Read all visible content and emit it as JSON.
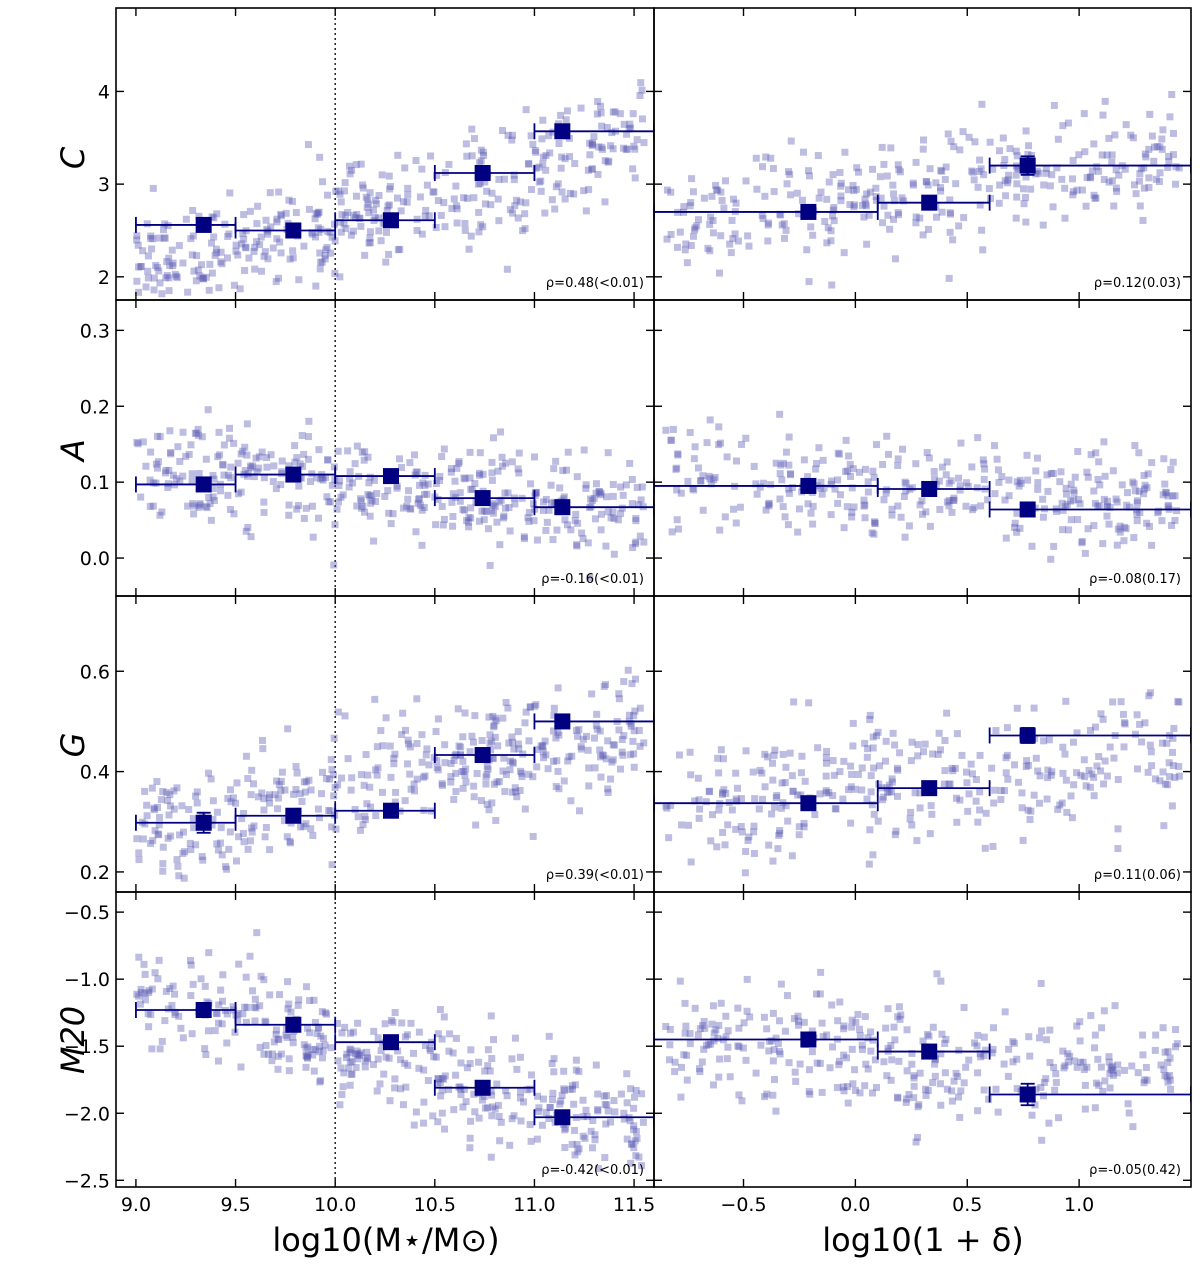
{
  "figure": {
    "x_titles": {
      "left": "log10(M⋆/M⊙)",
      "right": "log10(1 + δ)"
    },
    "row_titles": [
      "C",
      "A",
      "G",
      "M20"
    ]
  },
  "chart_data": {
    "type": "scatter",
    "columns": [
      {
        "key": "mass",
        "xlabel": "log10(M⋆/M⊙)",
        "xlim": [
          8.9,
          11.6
        ],
        "xticks": [
          9.0,
          9.5,
          10.0,
          10.5,
          11.0,
          11.5
        ],
        "xtick_labels": [
          "9.0",
          "9.5",
          "10.0",
          "10.5",
          "11.0",
          "11.5"
        ],
        "vline": 10.0,
        "vline_style": "dotted"
      },
      {
        "key": "density",
        "xlabel": "log10(1 + δ)",
        "xlim": [
          -0.9,
          1.5
        ],
        "xticks": [
          -0.5,
          0.0,
          0.5,
          1.0
        ],
        "xtick_labels": [
          "−0.5",
          "0.0",
          "0.5",
          "1.0"
        ]
      }
    ],
    "rows": [
      {
        "ylabel": "C",
        "ylim": [
          1.75,
          4.9
        ],
        "yticks": [
          2,
          3,
          4
        ],
        "ytick_labels": [
          "2",
          "3",
          "4"
        ]
      },
      {
        "ylabel": "A",
        "ylim": [
          -0.05,
          0.34
        ],
        "yticks": [
          0.0,
          0.1,
          0.2,
          0.3
        ],
        "ytick_labels": [
          "0.0",
          "0.1",
          "0.2",
          "0.3"
        ]
      },
      {
        "ylabel": "G",
        "ylim": [
          0.16,
          0.75
        ],
        "yticks": [
          0.2,
          0.4,
          0.6
        ],
        "ytick_labels": [
          "0.2",
          "0.4",
          "0.6"
        ]
      },
      {
        "ylabel": "M20",
        "ylim": [
          -2.55,
          -0.35
        ],
        "yticks": [
          -2.5,
          -2.0,
          -1.5,
          -1.0,
          -0.5
        ],
        "ytick_labels": [
          "−2.5",
          "−2.0",
          "−1.5",
          "−1.0",
          "−0.5"
        ]
      }
    ],
    "panels": [
      {
        "row": 0,
        "col": 0,
        "rho": "ρ=0.48(<0.01)",
        "binned": [
          {
            "x": 9.34,
            "y": 2.56,
            "xlo": 9.0,
            "xhi": 9.5,
            "yerr": 0.04
          },
          {
            "x": 9.79,
            "y": 2.5,
            "xlo": 9.5,
            "xhi": 10.0,
            "yerr": 0.04
          },
          {
            "x": 10.28,
            "y": 2.61,
            "xlo": 10.0,
            "xhi": 10.5,
            "yerr": 0.04
          },
          {
            "x": 10.74,
            "y": 3.12,
            "xlo": 10.5,
            "xhi": 11.0,
            "yerr": 0.04
          },
          {
            "x": 11.14,
            "y": 3.57,
            "xlo": 11.0,
            "xhi": 11.6,
            "yerr": 0.07
          }
        ],
        "scatter": {
          "n": 420,
          "xmin": 9.0,
          "xmax": 11.55,
          "slope": 0.55,
          "xref": 10.0,
          "yref": 2.6,
          "scatter": 0.55,
          "ymin": 1.8,
          "ymax": 4.6
        }
      },
      {
        "row": 0,
        "col": 1,
        "rho": "ρ=0.12(0.03)",
        "binned": [
          {
            "x": -0.21,
            "y": 2.7,
            "xlo": -0.9,
            "xhi": 0.1,
            "yerr": 0.04
          },
          {
            "x": 0.33,
            "y": 2.8,
            "xlo": 0.1,
            "xhi": 0.6,
            "yerr": 0.04
          },
          {
            "x": 0.77,
            "y": 3.2,
            "xlo": 0.6,
            "xhi": 1.5,
            "yerr": 0.1
          }
        ],
        "scatter": {
          "n": 340,
          "xmin": -0.85,
          "xmax": 1.45,
          "slope": 0.3,
          "xref": 0.0,
          "yref": 2.85,
          "scatter": 0.6,
          "ymin": 1.8,
          "ymax": 4.6
        }
      },
      {
        "row": 1,
        "col": 0,
        "rho": "ρ=-0.16(<0.01)",
        "binned": [
          {
            "x": 9.34,
            "y": 0.097,
            "xlo": 9.0,
            "xhi": 9.5,
            "yerr": 0.008
          },
          {
            "x": 9.79,
            "y": 0.11,
            "xlo": 9.5,
            "xhi": 10.0,
            "yerr": 0.006
          },
          {
            "x": 10.28,
            "y": 0.108,
            "xlo": 10.0,
            "xhi": 10.5,
            "yerr": 0.006
          },
          {
            "x": 10.74,
            "y": 0.079,
            "xlo": 10.5,
            "xhi": 11.0,
            "yerr": 0.005
          },
          {
            "x": 11.14,
            "y": 0.067,
            "xlo": 11.0,
            "xhi": 11.6,
            "yerr": 0.007
          }
        ],
        "scatter": {
          "n": 420,
          "xmin": 9.0,
          "xmax": 11.55,
          "slope": -0.025,
          "xref": 10.0,
          "yref": 0.1,
          "scatter": 0.06,
          "ymin": -0.04,
          "ymax": 0.33
        }
      },
      {
        "row": 1,
        "col": 1,
        "rho": "ρ=-0.08(0.17)",
        "binned": [
          {
            "x": -0.21,
            "y": 0.095,
            "xlo": -0.9,
            "xhi": 0.1,
            "yerr": 0.006
          },
          {
            "x": 0.33,
            "y": 0.091,
            "xlo": 0.1,
            "xhi": 0.6,
            "yerr": 0.006
          },
          {
            "x": 0.77,
            "y": 0.064,
            "xlo": 0.6,
            "xhi": 1.5,
            "yerr": 0.008
          }
        ],
        "scatter": {
          "n": 340,
          "xmin": -0.85,
          "xmax": 1.45,
          "slope": -0.02,
          "xref": 0.0,
          "yref": 0.095,
          "scatter": 0.06,
          "ymin": -0.04,
          "ymax": 0.33
        }
      },
      {
        "row": 2,
        "col": 0,
        "rho": "ρ=0.39(<0.01)",
        "binned": [
          {
            "x": 9.34,
            "y": 0.298,
            "xlo": 9.0,
            "xhi": 9.5,
            "yerr": 0.02
          },
          {
            "x": 9.79,
            "y": 0.312,
            "xlo": 9.5,
            "xhi": 10.0,
            "yerr": 0.01
          },
          {
            "x": 10.28,
            "y": 0.322,
            "xlo": 10.0,
            "xhi": 10.5,
            "yerr": 0.01
          },
          {
            "x": 10.74,
            "y": 0.433,
            "xlo": 10.5,
            "xhi": 11.0,
            "yerr": 0.01
          },
          {
            "x": 11.14,
            "y": 0.5,
            "xlo": 11.0,
            "xhi": 11.6,
            "yerr": 0.01
          }
        ],
        "scatter": {
          "n": 420,
          "xmin": 9.0,
          "xmax": 11.55,
          "slope": 0.085,
          "xref": 10.0,
          "yref": 0.36,
          "scatter": 0.11,
          "ymin": 0.17,
          "ymax": 0.72
        }
      },
      {
        "row": 2,
        "col": 1,
        "rho": "ρ=0.11(0.06)",
        "binned": [
          {
            "x": -0.21,
            "y": 0.337,
            "xlo": -0.9,
            "xhi": 0.1,
            "yerr": 0.01
          },
          {
            "x": 0.33,
            "y": 0.367,
            "xlo": 0.1,
            "xhi": 0.6,
            "yerr": 0.01
          },
          {
            "x": 0.77,
            "y": 0.472,
            "xlo": 0.6,
            "xhi": 1.5,
            "yerr": 0.015
          }
        ],
        "scatter": {
          "n": 340,
          "xmin": -0.85,
          "xmax": 1.45,
          "slope": 0.05,
          "xref": 0.0,
          "yref": 0.37,
          "scatter": 0.12,
          "ymin": 0.17,
          "ymax": 0.72
        }
      },
      {
        "row": 3,
        "col": 0,
        "rho": "ρ=-0.42(<0.01)",
        "binned": [
          {
            "x": 9.34,
            "y": -1.23,
            "xlo": 9.0,
            "xhi": 9.5,
            "yerr": 0.04
          },
          {
            "x": 9.79,
            "y": -1.34,
            "xlo": 9.5,
            "xhi": 10.0,
            "yerr": 0.03
          },
          {
            "x": 10.28,
            "y": -1.47,
            "xlo": 10.0,
            "xhi": 10.5,
            "yerr": 0.03
          },
          {
            "x": 10.74,
            "y": -1.81,
            "xlo": 10.5,
            "xhi": 11.0,
            "yerr": 0.03
          },
          {
            "x": 11.14,
            "y": -2.03,
            "xlo": 11.0,
            "xhi": 11.6,
            "yerr": 0.04
          }
        ],
        "scatter": {
          "n": 420,
          "xmin": 9.0,
          "xmax": 11.55,
          "slope": -0.4,
          "xref": 10.0,
          "yref": -1.5,
          "scatter": 0.35,
          "ymin": -2.45,
          "ymax": -0.65
        }
      },
      {
        "row": 3,
        "col": 1,
        "rho": "ρ=-0.05(0.42)",
        "binned": [
          {
            "x": -0.21,
            "y": -1.45,
            "xlo": -0.9,
            "xhi": 0.1,
            "yerr": 0.03
          },
          {
            "x": 0.33,
            "y": -1.54,
            "xlo": 0.1,
            "xhi": 0.6,
            "yerr": 0.03
          },
          {
            "x": 0.77,
            "y": -1.86,
            "xlo": 0.6,
            "xhi": 1.5,
            "yerr": 0.08
          }
        ],
        "scatter": {
          "n": 340,
          "xmin": -0.85,
          "xmax": 1.45,
          "slope": -0.1,
          "xref": 0.0,
          "yref": -1.55,
          "scatter": 0.38,
          "ymin": -2.45,
          "ymax": -0.65
        }
      }
    ],
    "colors": {
      "scatter": "#5a5ab4",
      "binned": "#000080",
      "axis": "#000000"
    }
  }
}
